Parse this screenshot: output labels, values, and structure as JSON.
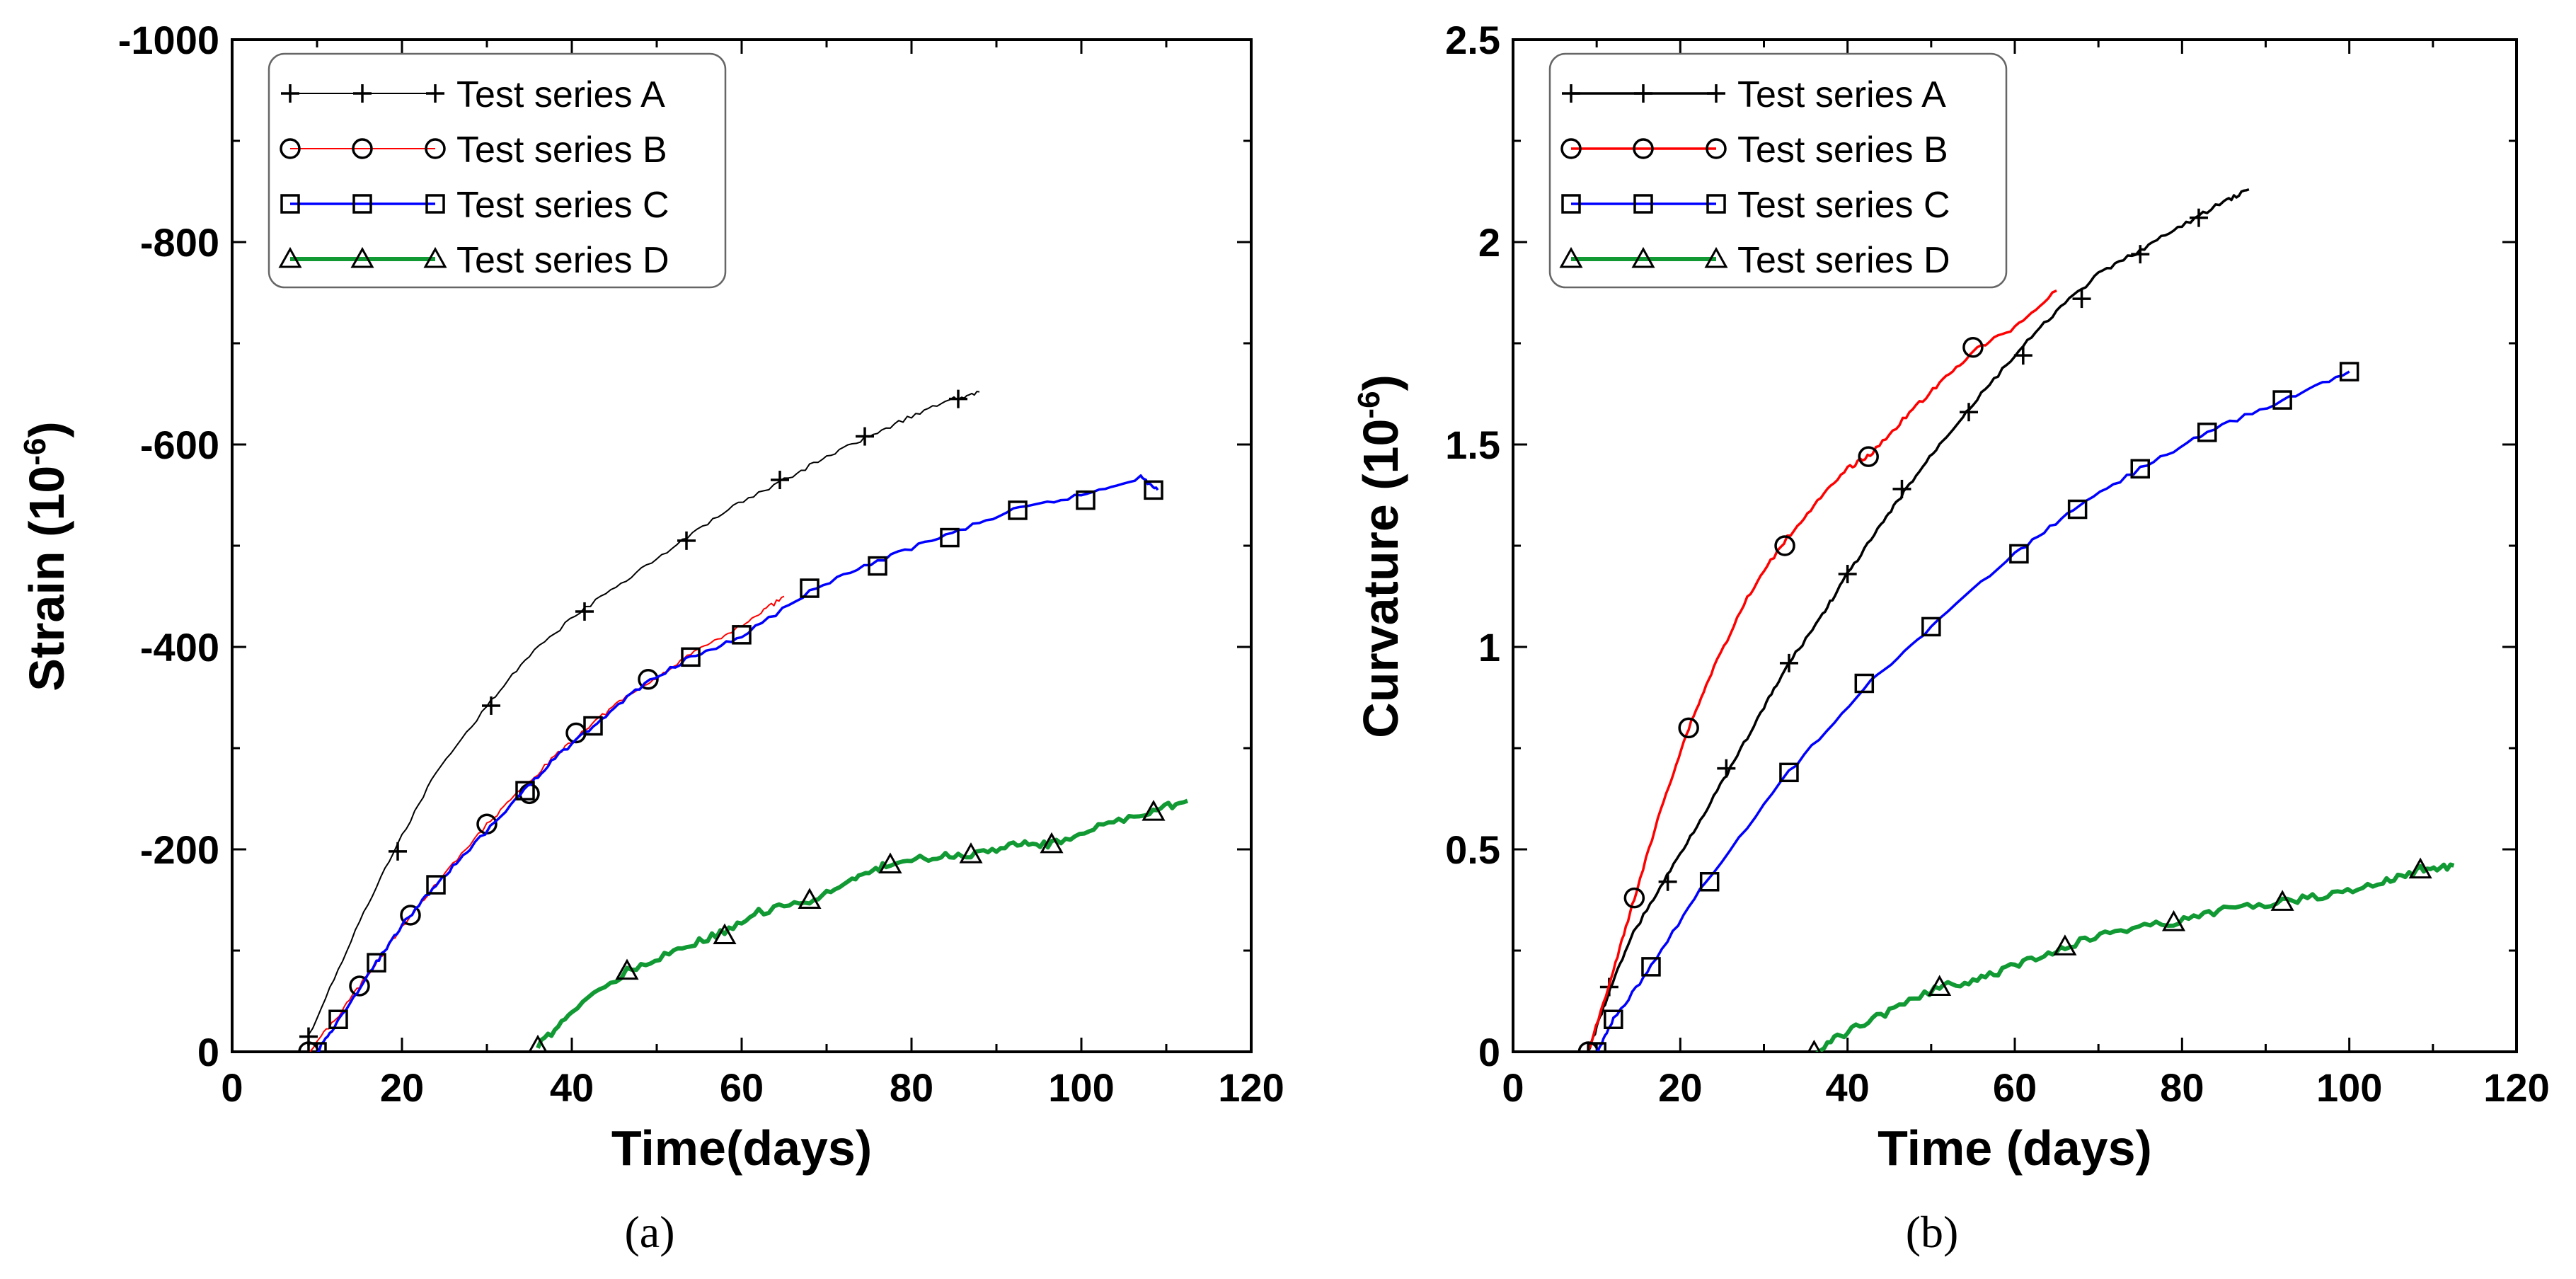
{
  "chart_data": [
    {
      "type": "line",
      "caption": "(a)",
      "xlabel": "Time(days)",
      "ylabel_main": "Strain (10",
      "ylabel_sup": "-6",
      "ylabel_close": ")",
      "xlim": [
        0,
        120
      ],
      "ylim": [
        0,
        -1000
      ],
      "y_inverted": true,
      "xticks": [
        0,
        20,
        40,
        60,
        80,
        100,
        120
      ],
      "yticks": [
        0,
        -200,
        -400,
        -600,
        -800,
        -1000
      ],
      "grid": false,
      "legend_position": "top-left",
      "series": [
        {
          "name": "Test series A",
          "color": "#000000",
          "marker": "plus",
          "line_width": "thin",
          "x": [
            9,
            14,
            19,
            24,
            30,
            35,
            41,
            47,
            53,
            59,
            65,
            70,
            75,
            80,
            85,
            88
          ],
          "y": [
            -15,
            -110,
            -198,
            -275,
            -342,
            -392,
            -435,
            -470,
            -505,
            -538,
            -565,
            -588,
            -608,
            -628,
            -645,
            -652
          ],
          "marker_x": [
            9,
            19.5,
            30.5,
            41.5,
            53.5,
            64.5,
            74.5,
            85.5
          ],
          "marker_y": [
            -15,
            -198,
            -342,
            -435,
            -505,
            -565,
            -608,
            -645
          ]
        },
        {
          "name": "Test series B",
          "color": "#ff0000",
          "marker": "circle",
          "line_width": "thin",
          "x": [
            9,
            12,
            15,
            18,
            21,
            25,
            30,
            34,
            38,
            42,
            46,
            50,
            54,
            58,
            62,
            65
          ],
          "y": [
            0,
            -30,
            -65,
            -100,
            -135,
            -175,
            -225,
            -258,
            -292,
            -322,
            -348,
            -370,
            -392,
            -412,
            -432,
            -450
          ],
          "marker_x": [
            9,
            15,
            21,
            30,
            35,
            40.5,
            49
          ],
          "marker_y": [
            0,
            -65,
            -135,
            -225,
            -255,
            -315,
            -368
          ]
        },
        {
          "name": "Test series C",
          "color": "#0000ff",
          "marker": "square",
          "line_width": "medium",
          "x": [
            10,
            12.5,
            17,
            20,
            24,
            28,
            34,
            38,
            43,
            48,
            54,
            60,
            68,
            76,
            84,
            92,
            100,
            107,
            109
          ],
          "y": [
            0,
            -30,
            -88,
            -125,
            -165,
            -200,
            -255,
            -290,
            -325,
            -360,
            -390,
            -410,
            -455,
            -485,
            -510,
            -535,
            -550,
            -568,
            -555
          ],
          "marker_x": [
            10,
            12.5,
            17,
            24,
            34.5,
            42.5,
            54,
            60,
            68,
            76,
            84.5,
            92.5,
            100.5,
            108.5
          ],
          "marker_y": [
            0,
            -32,
            -88,
            -165,
            -258,
            -322,
            -390,
            -412,
            -458,
            -480,
            -508,
            -535,
            -545,
            -555
          ]
        },
        {
          "name": "Test series D",
          "color": "#119933",
          "marker": "triangle",
          "line_width": "thick",
          "x": [
            36,
            40,
            46.5,
            52,
            57,
            62,
            68,
            73,
            77,
            82,
            87,
            92,
            96.5,
            102,
            108,
            112.5
          ],
          "y": [
            -5,
            -40,
            -80,
            -100,
            -115,
            -138,
            -150,
            -168,
            -185,
            -192,
            -195,
            -205,
            -205,
            -222,
            -237,
            -248
          ],
          "marker_x": [
            36,
            46.5,
            58,
            68,
            77.5,
            87,
            96.5,
            108.5
          ],
          "marker_y": [
            -5,
            -80,
            -115,
            -150,
            -185,
            -195,
            -205,
            -237
          ]
        }
      ]
    },
    {
      "type": "line",
      "caption": "(b)",
      "xlabel": "Time (days)",
      "ylabel_main": "Curvature (10",
      "ylabel_sup": "-6",
      "ylabel_close": ")",
      "xlim": [
        0,
        120
      ],
      "ylim": [
        0,
        2.5
      ],
      "y_inverted": false,
      "xticks": [
        0,
        20,
        40,
        60,
        80,
        100,
        120
      ],
      "yticks": [
        0,
        0.5,
        1,
        1.5,
        2,
        2.5
      ],
      "ytick_labels": [
        "0",
        "0.5",
        "1",
        "1.5",
        "2",
        "2.5"
      ],
      "grid": false,
      "legend_position": "top-left",
      "series": [
        {
          "name": "Test series A",
          "color": "#000000",
          "marker": "plus",
          "line_width": "medium",
          "x": [
            9,
            11,
            14,
            18,
            22,
            26,
            30,
            33,
            37,
            40,
            44,
            47,
            51,
            55,
            60,
            65,
            70,
            75,
            80,
            85,
            88
          ],
          "y": [
            0,
            0.12,
            0.28,
            0.42,
            0.56,
            0.7,
            0.85,
            0.96,
            1.08,
            1.18,
            1.3,
            1.39,
            1.5,
            1.6,
            1.72,
            1.83,
            1.92,
            1.98,
            2.04,
            2.1,
            2.13
          ],
          "marker_x": [
            9,
            11.5,
            18.5,
            25.5,
            33,
            40,
            46.5,
            54.5,
            61,
            68,
            75,
            82
          ],
          "marker_y": [
            0,
            0.16,
            0.42,
            0.7,
            0.96,
            1.18,
            1.39,
            1.58,
            1.72,
            1.86,
            1.97,
            2.06
          ]
        },
        {
          "name": "Test series B",
          "color": "#ff0000",
          "marker": "circle",
          "line_width": "medium",
          "x": [
            9,
            12,
            14.5,
            18,
            21,
            24,
            28,
            32,
            36,
            40,
            43,
            47,
            51,
            55,
            60,
            65
          ],
          "y": [
            0,
            0.2,
            0.38,
            0.62,
            0.8,
            0.95,
            1.12,
            1.25,
            1.35,
            1.44,
            1.48,
            1.57,
            1.65,
            1.73,
            1.79,
            1.88
          ],
          "marker_x": [
            9,
            14.5,
            21,
            32.5,
            42.5,
            55
          ],
          "marker_y": [
            0,
            0.38,
            0.8,
            1.25,
            1.47,
            1.74
          ]
        },
        {
          "name": "Test series C",
          "color": "#0000ff",
          "marker": "square",
          "line_width": "medium",
          "x": [
            10,
            12,
            16.5,
            23,
            33,
            42,
            50,
            60,
            67,
            75,
            83,
            92,
            100
          ],
          "y": [
            0,
            0.08,
            0.21,
            0.42,
            0.69,
            0.9,
            1.05,
            1.23,
            1.34,
            1.44,
            1.53,
            1.61,
            1.68
          ],
          "marker_x": [
            10,
            12,
            16.5,
            23.5,
            33,
            42,
            50,
            60.5,
            67.5,
            75,
            83,
            92,
            100
          ],
          "marker_y": [
            0,
            0.08,
            0.21,
            0.42,
            0.69,
            0.91,
            1.05,
            1.23,
            1.34,
            1.44,
            1.53,
            1.61,
            1.68
          ]
        },
        {
          "name": "Test series D",
          "color": "#119933",
          "marker": "triangle",
          "line_width": "thick",
          "x": [
            36,
            40,
            45,
            51,
            56,
            61,
            66,
            72,
            79,
            85,
            92,
            98,
            104,
            108.5,
            112.5
          ],
          "y": [
            0,
            0.05,
            0.1,
            0.16,
            0.18,
            0.22,
            0.26,
            0.3,
            0.32,
            0.35,
            0.37,
            0.39,
            0.42,
            0.45,
            0.46
          ],
          "marker_x": [
            36,
            51,
            66,
            79,
            92,
            108.5
          ],
          "marker_y": [
            0,
            0.16,
            0.26,
            0.32,
            0.37,
            0.45
          ]
        }
      ]
    }
  ]
}
